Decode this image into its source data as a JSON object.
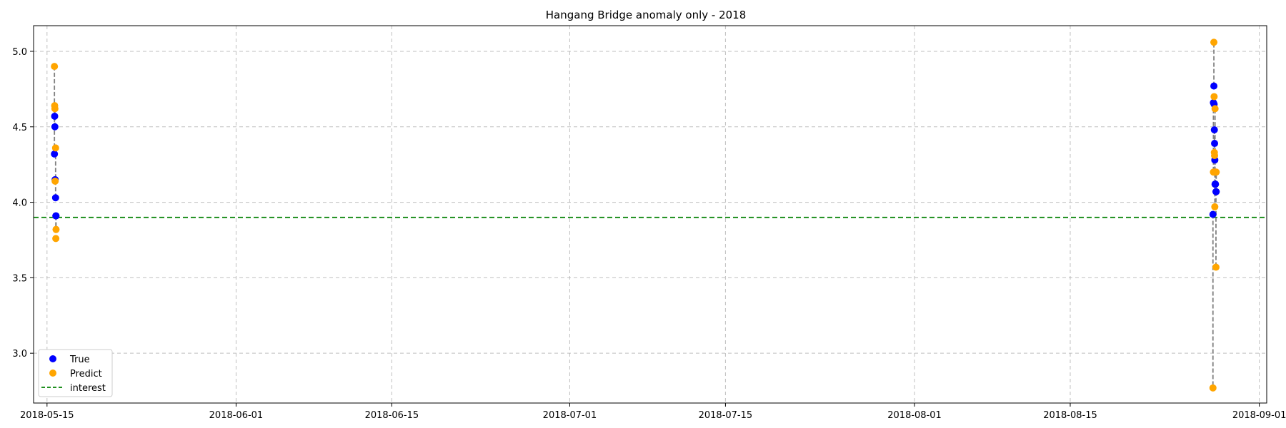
{
  "chart_data": {
    "type": "scatter",
    "title": "Hangang Bridge anomaly only - 2018",
    "xlabel": "",
    "ylabel": "",
    "x_axis_type": "date",
    "xlim": [
      "2018-05-13T19:00",
      "2018-09-01T16:00"
    ],
    "ylim": [
      2.67,
      5.17
    ],
    "x_ticks": [
      "2018-05-15",
      "2018-06-01",
      "2018-06-15",
      "2018-07-01",
      "2018-07-15",
      "2018-08-01",
      "2018-08-15",
      "2018-09-01"
    ],
    "y_ticks": [
      3.0,
      3.5,
      4.0,
      4.5,
      5.0
    ],
    "grid": true,
    "legend_position": "lower-left",
    "interest_line": {
      "name": "interest",
      "y": 3.9,
      "color": "#008000",
      "style": "dashed"
    },
    "colors": {
      "true": "#0000ff",
      "predict": "#ffa500",
      "connector": "#808080"
    },
    "pairs": [
      {
        "x": "2018-05-15T16:00",
        "true": 4.32,
        "predict": 4.9
      },
      {
        "x": "2018-05-15T16:30",
        "true": 4.57,
        "predict": 4.64
      },
      {
        "x": "2018-05-15T17:00",
        "true": 4.5,
        "predict": 4.62
      },
      {
        "x": "2018-05-15T17:30",
        "true": 4.15,
        "predict": 4.14
      },
      {
        "x": "2018-05-15T18:30",
        "true": 4.03,
        "predict": 4.36
      },
      {
        "x": "2018-05-15T19:00",
        "true": 3.91,
        "predict": 3.76
      },
      {
        "x": "2018-05-15T19:30",
        "true": 3.91,
        "predict": 3.82
      },
      {
        "x": "2018-08-27T20:00",
        "true": 3.92,
        "predict": 2.77
      },
      {
        "x": "2018-08-27T21:00",
        "true": 4.66,
        "predict": 4.2
      },
      {
        "x": "2018-08-27T22:00",
        "true": 4.77,
        "predict": 5.06
      },
      {
        "x": "2018-08-27T22:30",
        "true": 4.65,
        "predict": 4.7
      },
      {
        "x": "2018-08-27T23:00",
        "true": 4.48,
        "predict": 4.33
      },
      {
        "x": "2018-08-27T23:30",
        "true": 4.39,
        "predict": 4.31
      },
      {
        "x": "2018-08-28T00:00",
        "true": 4.28,
        "predict": 3.97
      },
      {
        "x": "2018-08-28T00:30",
        "true": 4.12,
        "predict": 4.62
      },
      {
        "x": "2018-08-28T01:30",
        "true": 4.12,
        "predict": 4.2
      },
      {
        "x": "2018-08-28T02:30",
        "true": 4.07,
        "predict": 3.57
      },
      {
        "x": "2018-08-28T03:00",
        "true": 4.07,
        "predict": 4.2
      }
    ],
    "series": [
      {
        "name": "True",
        "color": "#0000ff"
      },
      {
        "name": "Predict",
        "color": "#ffa500"
      }
    ],
    "legend": [
      "True",
      "Predict",
      "interest"
    ]
  }
}
